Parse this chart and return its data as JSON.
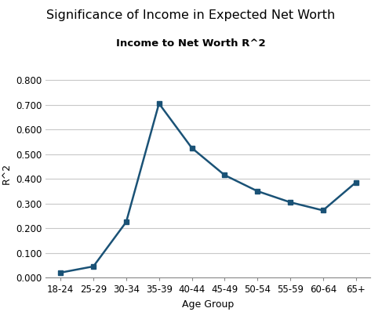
{
  "title": "Significance of Income in Expected Net Worth",
  "subtitle": "Income to Net Worth R^2",
  "xlabel": "Age Group",
  "ylabel": "R^2",
  "categories": [
    "18-24",
    "25-29",
    "30-34",
    "35-39",
    "40-44",
    "45-49",
    "50-54",
    "55-59",
    "60-64",
    "65+"
  ],
  "values": [
    0.02,
    0.045,
    0.225,
    0.705,
    0.525,
    0.415,
    0.35,
    0.305,
    0.272,
    0.385
  ],
  "line_color": "#1a5276",
  "marker": "s",
  "marker_size": 4.5,
  "line_width": 1.8,
  "ylim": [
    0.0,
    0.84
  ],
  "yticks": [
    0.0,
    0.1,
    0.2,
    0.3,
    0.4,
    0.5,
    0.6,
    0.7,
    0.8
  ],
  "grid_color": "#c8c8c8",
  "bg_color": "#ffffff",
  "title_fontsize": 11.5,
  "subtitle_fontsize": 9.5,
  "label_fontsize": 9,
  "tick_fontsize": 8.5
}
